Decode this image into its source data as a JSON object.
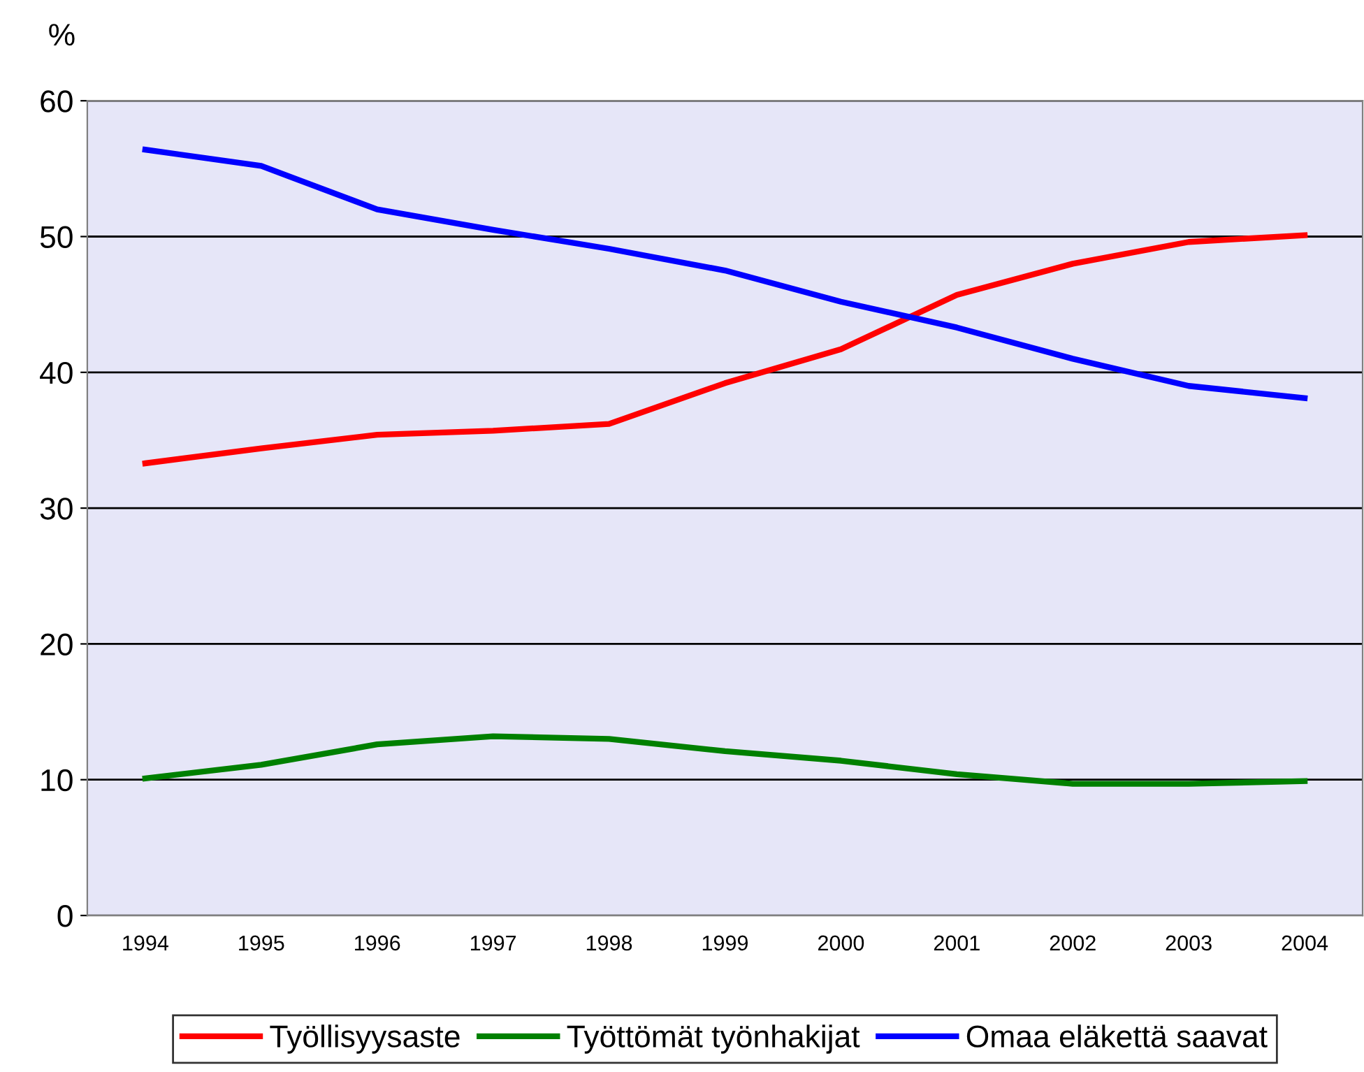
{
  "chart_data": {
    "type": "line",
    "ylabel": "%",
    "categories": [
      "1994",
      "1995",
      "1996",
      "1997",
      "1998",
      "1999",
      "2000",
      "2001",
      "2002",
      "2003",
      "2004"
    ],
    "series": [
      {
        "name": "Työllisyysaste",
        "color": "#ff0000",
        "values": [
          33.3,
          34.4,
          35.4,
          35.7,
          36.2,
          39.2,
          41.7,
          45.7,
          48.0,
          49.6,
          50.1
        ]
      },
      {
        "name": "Työttömät työnhakijat",
        "color": "#008000",
        "values": [
          10.1,
          11.1,
          12.6,
          13.2,
          13.0,
          12.1,
          11.4,
          10.4,
          9.7,
          9.7,
          9.9
        ]
      },
      {
        "name": "Omaa eläkettä saavat",
        "color": "#0000ff",
        "values": [
          56.4,
          55.2,
          52.0,
          50.5,
          49.1,
          47.5,
          45.2,
          43.3,
          41.0,
          39.0,
          38.1
        ]
      }
    ],
    "ylim": [
      0,
      60
    ],
    "yticks": [
      0,
      10,
      20,
      30,
      40,
      50,
      60
    ],
    "grid": "y",
    "legend": "bottom",
    "marker": "none",
    "line_style": "solid"
  }
}
